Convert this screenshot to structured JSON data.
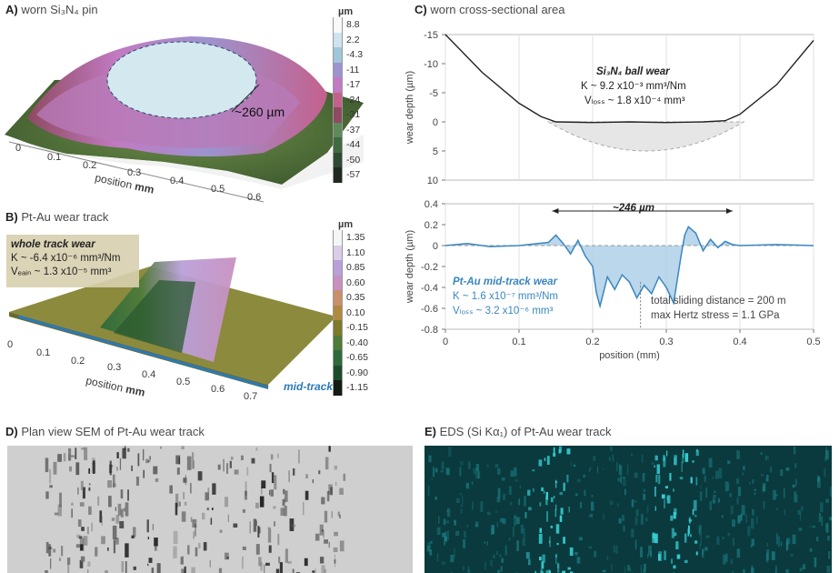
{
  "panels": {
    "a": {
      "letter": "A)",
      "title": "worn Si₃N₄ pin",
      "unit": "µm",
      "unit_axis": "mm",
      "axis_title": "position",
      "ticks": [
        "0",
        "0.1",
        "0.2",
        "0.3",
        "0.4",
        "0.5",
        "0.6"
      ],
      "scale_labels": [
        "8.8",
        "2.2",
        "-4.3",
        "-11",
        "-17",
        "-24",
        "-31",
        "-37",
        "-44",
        "-50",
        "-57"
      ],
      "scale_colors": [
        "#f7f9fb",
        "#cfe3ec",
        "#9fc7d9",
        "#9d93cf",
        "#c27ac2",
        "#c4608d",
        "#8e4a60",
        "#5e8a5c",
        "#3f6b43",
        "#2e4a32",
        "#202a22"
      ],
      "dimension": "~260 µm",
      "corner_mark": "1"
    },
    "b": {
      "letter": "B)",
      "title": "Pt-Au wear track",
      "unit": "µm",
      "unit_axis": "mm",
      "axis_title": "position",
      "ticks": [
        "0",
        "0.1",
        "0.2",
        "0.3",
        "0.4",
        "0.5",
        "0.6",
        "0.7"
      ],
      "scale_labels": [
        "1.35",
        "1.10",
        "0.85",
        "0.60",
        "0.35",
        "0.10",
        "-0.15",
        "-0.40",
        "-0.65",
        "-0.90",
        "-1.15"
      ],
      "scale_colors": [
        "#f5f5f8",
        "#d9cde8",
        "#b9a0d8",
        "#c890c0",
        "#c9906c",
        "#b08a40",
        "#7e7a2c",
        "#4e7a3a",
        "#2e6a3c",
        "#1e4a2c",
        "#121a14"
      ],
      "note_title": "whole track wear",
      "note_k": "K ~ -6.4 x10⁻⁶ mm³/Nm",
      "note_v": "Vₑₐᵢₙ ~ 1.3 x10⁻⁵ mm³",
      "mid_track": "mid-track"
    },
    "c": {
      "letter": "C)",
      "title": "worn cross-sectional area",
      "ylabel": "wear depth (µm)",
      "xlabel": "position (mm)",
      "top_y_ticks": [
        "-15",
        "-10",
        "-5",
        "0",
        "5",
        "10"
      ],
      "bottom_y_ticks": [
        "0.4",
        "0.2",
        "0",
        "-0.2",
        "-0.4",
        "-0.6",
        "-0.8"
      ],
      "x_ticks": [
        "0",
        "0.1",
        "0.2",
        "0.3",
        "0.4",
        "0.5"
      ],
      "ball_title": "Si₃N₄ ball wear",
      "ball_k": "K ~ 9.2 x10⁻³ mm³/Nm",
      "ball_v": "Vₗₒₛₛ ~ 1.8 x10⁻⁴ mm³",
      "width_label": "~246 µm",
      "pt_title": "Pt-Au mid-track wear",
      "pt_k": "K ~ 1.6 x10⁻⁷ mm³/Nm",
      "pt_v": "Vₗₒₛₛ ~ 3.2 x10⁻⁶ mm³",
      "cond_1": "total sliding distance = 200 m",
      "cond_2": "max Hertz stress = 1.1 GPa"
    },
    "d": {
      "letter": "D)",
      "title": "Plan view SEM of Pt-Au wear track"
    },
    "e": {
      "letter": "E)",
      "title": "EDS (Si Kα₁) of Pt-Au wear track"
    }
  },
  "colors": {
    "profile_blue": "#3a86bf",
    "fill_blue": "#a9cde6",
    "mid_track_blue": "#2a7ab8",
    "eds_bg": "#0a3a3e",
    "eds_bright": "#38d0d4"
  },
  "chart_data": [
    {
      "type": "line",
      "title": "worn cross-sectional area",
      "xlabel": "position (mm)",
      "ylabel": "wear depth (µm)",
      "xlim": [
        0,
        0.5
      ],
      "ylim": [
        -15,
        10
      ],
      "series": [
        {
          "name": "Si₃N₄ ball wear",
          "x": [
            0,
            0.05,
            0.1,
            0.13,
            0.15,
            0.2,
            0.25,
            0.3,
            0.35,
            0.38,
            0.4,
            0.45,
            0.5
          ],
          "y": [
            -15,
            -8.5,
            -3.2,
            -0.9,
            0,
            0.1,
            0,
            0.1,
            0,
            -0.2,
            -1.3,
            -6.4,
            -14
          ]
        }
      ]
    },
    {
      "type": "line",
      "title": "",
      "xlabel": "position (mm)",
      "ylabel": "wear depth (µm)",
      "xlim": [
        0,
        0.5
      ],
      "ylim": [
        -0.8,
        0.4
      ],
      "series": [
        {
          "name": "Pt-Au mid-track wear",
          "x": [
            0,
            0.03,
            0.06,
            0.1,
            0.14,
            0.15,
            0.16,
            0.17,
            0.18,
            0.19,
            0.2,
            0.205,
            0.21,
            0.22,
            0.23,
            0.24,
            0.25,
            0.26,
            0.27,
            0.28,
            0.29,
            0.3,
            0.31,
            0.32,
            0.325,
            0.33,
            0.34,
            0.35,
            0.36,
            0.37,
            0.38,
            0.39,
            0.4,
            0.45,
            0.5
          ],
          "y": [
            0,
            0.02,
            -0.01,
            0,
            0.03,
            0.1,
            0.02,
            -0.08,
            0.05,
            -0.1,
            -0.2,
            -0.45,
            -0.58,
            -0.3,
            -0.42,
            -0.28,
            -0.35,
            -0.5,
            -0.38,
            -0.46,
            -0.3,
            -0.4,
            -0.55,
            -0.1,
            0.1,
            0.18,
            0.12,
            -0.05,
            0.06,
            -0.02,
            0.04,
            0.01,
            0,
            0.01,
            0
          ]
        }
      ]
    }
  ]
}
